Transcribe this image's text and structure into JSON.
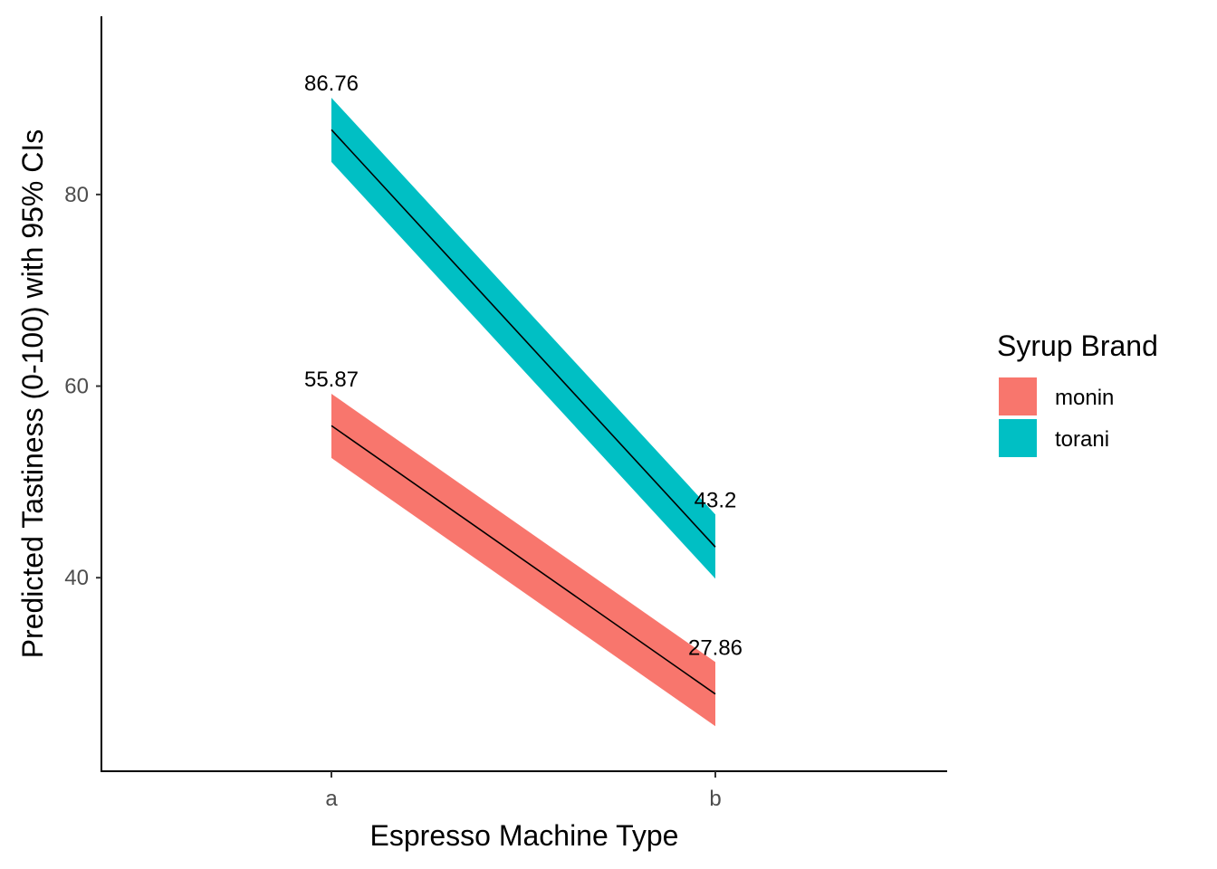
{
  "chart_data": {
    "type": "line",
    "xlabel": "Espresso Machine Type",
    "ylabel": "Predicted Tastiness (0-100) with 95% CIs",
    "categories": [
      "a",
      "b"
    ],
    "y_ticks": [
      40,
      60,
      80
    ],
    "ylim": [
      19.8,
      98.6
    ],
    "grid": false,
    "legend": {
      "title": "Syrup Brand",
      "placement": "right"
    },
    "series": [
      {
        "name": "monin",
        "color": "#F8766D",
        "values": [
          55.87,
          27.86
        ],
        "ci_lower": [
          52.5,
          24.5
        ],
        "ci_upper": [
          59.2,
          31.2
        ],
        "labels": [
          "55.87",
          "27.86"
        ]
      },
      {
        "name": "torani",
        "color": "#00BFC4",
        "values": [
          86.76,
          43.2
        ],
        "ci_lower": [
          83.4,
          39.9
        ],
        "ci_upper": [
          90.1,
          46.6
        ],
        "labels": [
          "86.76",
          "43.2"
        ]
      }
    ]
  }
}
